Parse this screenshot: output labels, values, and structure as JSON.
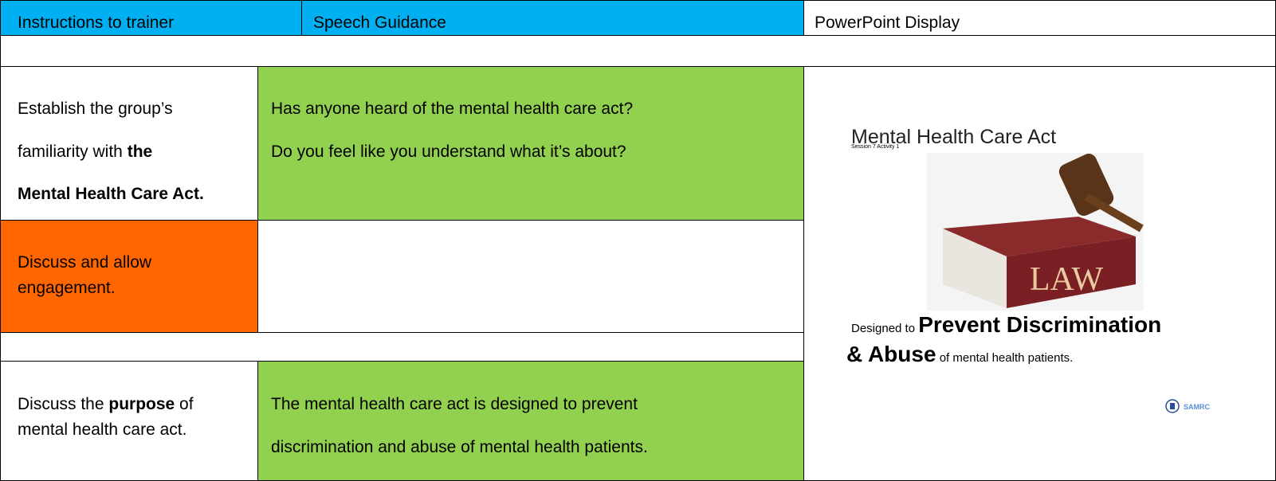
{
  "header": {
    "instructions": "Instructions to trainer",
    "speech": "Speech Guidance",
    "display": "PowerPoint Display"
  },
  "rows": [
    {
      "instruction_lines": [
        [
          "Establish the group’s"
        ],
        [
          "familiarity with ",
          "the"
        ],
        [
          "Mental Health Care Act."
        ]
      ],
      "speech_lines": [
        "Has anyone heard of the mental health care act?",
        "Do you feel like you understand what it’s about?"
      ]
    },
    {
      "instruction_lines": [
        [
          "Discuss and allow"
        ],
        [
          "engagement."
        ]
      ]
    },
    {
      "instruction_lines": [
        [
          "Discuss the ",
          "purpose",
          " of"
        ],
        [
          "mental health care act."
        ]
      ],
      "speech_lines": [
        "The mental health care act is designed to prevent",
        "discrimination and abuse of mental health patients."
      ]
    }
  ],
  "slide": {
    "title": "Mental Health Care Act",
    "subtitle": "Session 7 Activity 1",
    "book_label": "LAW",
    "caption": {
      "lead": "Designed to ",
      "emphasis_1": "Prevent Discrimination",
      "emphasis_2": "& Abuse",
      "tail": " of mental health patients."
    },
    "logo": "SAMRC"
  }
}
